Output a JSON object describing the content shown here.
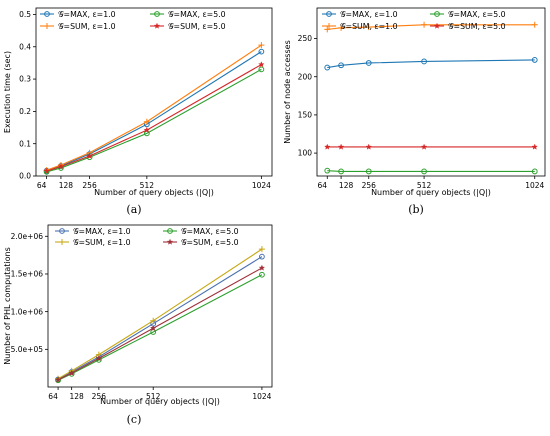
{
  "chart_data": [
    {
      "type": "line",
      "caption": "(a)",
      "xlabel": "Number of query objects (|Q|)",
      "ylabel": "Execution time (sec)",
      "x": [
        64,
        128,
        256,
        512,
        1024
      ],
      "xticks": [
        "64",
        "128",
        "256",
        "512",
        "1024"
      ],
      "ylim": [
        0.0,
        0.52
      ],
      "yticks": [
        0.0,
        0.1,
        0.2,
        0.3,
        0.4,
        0.5
      ],
      "ytick_labels": [
        "0.0",
        "0.1",
        "0.2",
        "0.3",
        "0.4",
        "0.5"
      ],
      "legend_placement": "top-left",
      "series": [
        {
          "name": "𝒢=MAX, ε=1.0",
          "color": "#1f77b4",
          "marker": "o",
          "values": [
            0.016,
            0.031,
            0.068,
            0.16,
            0.385
          ]
        },
        {
          "name": "𝒢=MAX, ε=5.0",
          "color": "#2ca02c",
          "marker": "o",
          "values": [
            0.013,
            0.025,
            0.058,
            0.132,
            0.33
          ]
        },
        {
          "name": "𝒢=SUM, ε=1.0",
          "color": "#ff7f0e",
          "marker": "+",
          "values": [
            0.018,
            0.034,
            0.072,
            0.168,
            0.405
          ]
        },
        {
          "name": "𝒢=SUM, ε=5.0",
          "color": "#d62728",
          "marker": "*",
          "values": [
            0.015,
            0.029,
            0.062,
            0.142,
            0.345
          ]
        }
      ]
    },
    {
      "type": "line",
      "caption": "(b)",
      "xlabel": "Number of query objects (|Q|)",
      "ylabel": "Number of node accesses",
      "x": [
        64,
        128,
        256,
        512,
        1024
      ],
      "xticks": [
        "64",
        "128",
        "256",
        "512",
        "1024"
      ],
      "ylim": [
        70,
        290
      ],
      "yticks": [
        100,
        150,
        200,
        250
      ],
      "ytick_labels": [
        "100",
        "150",
        "200",
        "250"
      ],
      "legend_placement": "top",
      "series": [
        {
          "name": "𝒢=MAX, ε=1.0",
          "color": "#1f77b4",
          "marker": "o",
          "values": [
            212,
            215,
            218,
            220,
            222
          ]
        },
        {
          "name": "𝒢=MAX, ε=5.0",
          "color": "#2ca02c",
          "marker": "o",
          "values": [
            77,
            76,
            76,
            76,
            76
          ]
        },
        {
          "name": "𝒢=SUM, ε=1.0",
          "color": "#ff7f0e",
          "marker": "+",
          "values": [
            262,
            264,
            265,
            268,
            268
          ]
        },
        {
          "name": "𝒢=SUM, ε=5.0",
          "color": "#d62728",
          "marker": "*",
          "values": [
            108,
            108,
            108,
            108,
            108
          ]
        }
      ]
    },
    {
      "type": "line",
      "caption": "(c)",
      "xlabel": "Number of query objects (|Q|)",
      "ylabel": "Number of PHL computations",
      "x": [
        64,
        128,
        256,
        512,
        1024
      ],
      "xticks": [
        "64",
        "128",
        "256",
        "512",
        "1024"
      ],
      "ylim": [
        0,
        2150000
      ],
      "yticks": [
        500000,
        1000000,
        1500000,
        2000000
      ],
      "ytick_labels": [
        "5.0e+05",
        "1.0e+06",
        "1.5e+06",
        "2.0e+06"
      ],
      "legend_placement": "top-left",
      "series": [
        {
          "name": "𝒢=MAX, ε=1.0",
          "color": "#4c72b0",
          "marker": "o",
          "values": [
            100000,
            200000,
            400000,
            840000,
            1730000
          ]
        },
        {
          "name": "𝒢=MAX, ε=5.0",
          "color": "#2ca02c",
          "marker": "o",
          "values": [
            90000,
            175000,
            360000,
            730000,
            1490000
          ]
        },
        {
          "name": "𝒢=SUM, ε=1.0",
          "color": "#c8a814",
          "marker": "+",
          "values": [
            110000,
            215000,
            430000,
            880000,
            1830000
          ]
        },
        {
          "name": "𝒢=SUM, ε=5.0",
          "color": "#a0303a",
          "marker": "*",
          "values": [
            95000,
            185000,
            380000,
            780000,
            1580000
          ]
        }
      ]
    }
  ]
}
